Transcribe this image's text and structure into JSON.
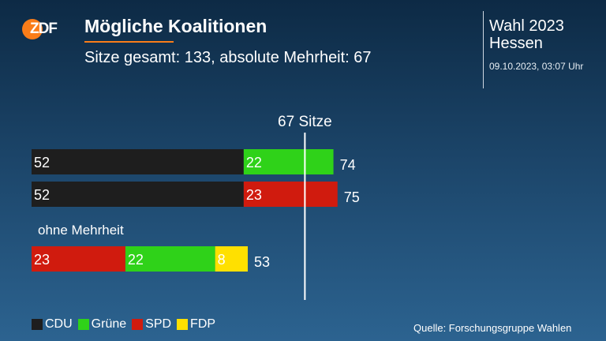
{
  "header": {
    "logo_text": "ZDF",
    "title": "Mögliche Koalitionen",
    "subtitle": "Sitze gesamt: 133, absolute Mehrheit: 67",
    "election_line1": "Wahl 2023",
    "election_line2": "Hessen",
    "timestamp": "09.10.2023, 03:07 Uhr"
  },
  "chart_data": {
    "type": "bar",
    "orientation": "horizontal",
    "stacked": true,
    "threshold": {
      "value": 67,
      "label": "67 Sitze"
    },
    "group_label": "ohne Mehrheit",
    "rows": [
      {
        "segments": [
          {
            "party": "CDU",
            "value": 52
          },
          {
            "party": "Grüne",
            "value": 22
          }
        ],
        "total": 74
      },
      {
        "segments": [
          {
            "party": "CDU",
            "value": 52
          },
          {
            "party": "SPD",
            "value": 23
          }
        ],
        "total": 75
      },
      {
        "segments": [
          {
            "party": "SPD",
            "value": 23
          },
          {
            "party": "Grüne",
            "value": 22
          },
          {
            "party": "FDP",
            "value": 8
          }
        ],
        "total": 53
      }
    ],
    "colors": {
      "CDU": "#1e1e1e",
      "Grüne": "#2fd219",
      "SPD": "#d01b0e",
      "FDP": "#ffe000"
    },
    "label_colors": {
      "CDU": "#ffffff",
      "Grüne": "#ffffff",
      "SPD": "#ffffff",
      "FDP": "#ffffff"
    }
  },
  "legend": [
    {
      "label": "CDU",
      "color": "#1e1e1e"
    },
    {
      "label": "Grüne",
      "color": "#2fd219"
    },
    {
      "label": "SPD",
      "color": "#d01b0e"
    },
    {
      "label": "FDP",
      "color": "#ffe000"
    }
  ],
  "footer": {
    "source": "Quelle: Forschungsgruppe Wahlen"
  }
}
